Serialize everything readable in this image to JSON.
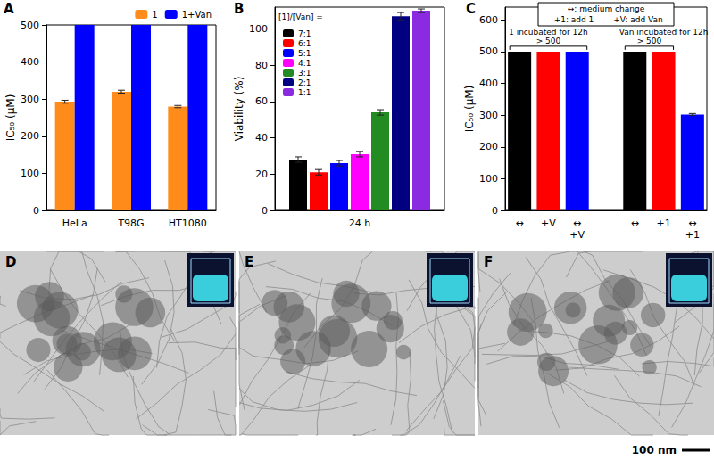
{
  "chart_data": [
    {
      "panel": "A",
      "type": "bar",
      "y_label": "IC₅₀ (μM)",
      "categories": [
        "HeLa",
        "T98G",
        "HT1080"
      ],
      "series": [
        {
          "name": "1",
          "color": "#ff8c1a",
          "values": [
            293,
            320,
            280
          ],
          "errors": [
            4,
            4,
            3
          ]
        },
        {
          "name": "1+Van",
          "color": "#0000ff",
          "values": [
            500,
            500,
            500
          ]
        }
      ],
      "ylim": [
        0,
        500
      ],
      "yticks": [
        0,
        100,
        200,
        300,
        400,
        500
      ],
      "legend": "top",
      "grid": false
    },
    {
      "panel": "B",
      "type": "bar",
      "y_label": "Viability (%)",
      "legend_title": "[1]/[Van] =",
      "categories": [
        "24 h"
      ],
      "series": [
        {
          "name": "7:1",
          "color": "#000000",
          "values": [
            28
          ],
          "errors": [
            1.5
          ]
        },
        {
          "name": "6:1",
          "color": "#ff0000",
          "values": [
            21
          ],
          "errors": [
            1.5
          ]
        },
        {
          "name": "5:1",
          "color": "#0000ff",
          "values": [
            26
          ],
          "errors": [
            1.5
          ]
        },
        {
          "name": "4:1",
          "color": "#ff00ff",
          "values": [
            31
          ],
          "errors": [
            1.5
          ]
        },
        {
          "name": "3:1",
          "color": "#228b22",
          "values": [
            54
          ],
          "errors": [
            1.5
          ]
        },
        {
          "name": "2:1",
          "color": "#000080",
          "values": [
            107
          ],
          "errors": [
            2
          ]
        },
        {
          "name": "1:1",
          "color": "#8a2be2",
          "values": [
            110
          ],
          "errors": [
            1
          ]
        }
      ],
      "ylim": [
        0,
        112
      ],
      "yticks": [
        0,
        20,
        40,
        60,
        80,
        100
      ],
      "legend": "upper left",
      "grid": false
    },
    {
      "panel": "C",
      "type": "bar",
      "y_label": "IC₅₀ (μM)",
      "categories": [
        "↔",
        "+V",
        "↔\n+V",
        null,
        "↔",
        "+1",
        "↔\n+1"
      ],
      "values": [
        500,
        500,
        500,
        null,
        500,
        500,
        302
      ],
      "errors": [
        null,
        null,
        null,
        null,
        null,
        null,
        3
      ],
      "colors": [
        "#000000",
        "#ff0000",
        "#0000ff",
        null,
        "#000000",
        "#ff0000",
        "#0000ff"
      ],
      "ylim": [
        0,
        640
      ],
      "yticks": [
        0,
        100,
        200,
        300,
        400,
        500,
        600
      ],
      "key": [
        "↔: medium change",
        "+1: add 1",
        "+V: add Van"
      ],
      "group_labels": [
        "1 incubated for 12h",
        "Van incubated for 12h"
      ],
      "bracket_labels": [
        "> 500",
        "> 500"
      ],
      "grid": false
    }
  ],
  "images": [
    {
      "panel": "D"
    },
    {
      "panel": "E"
    },
    {
      "panel": "F"
    }
  ],
  "scale_bar": "100 nm"
}
